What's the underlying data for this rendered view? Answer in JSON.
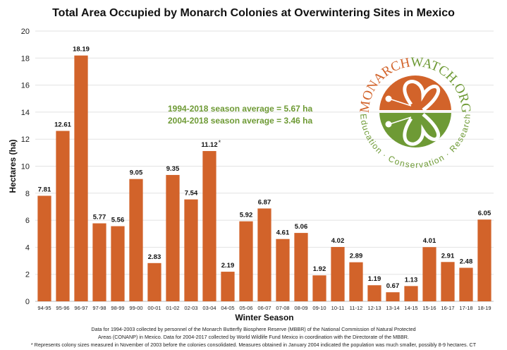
{
  "chart_data": {
    "type": "bar",
    "title": "Total Area Occupied by Monarch Colonies at Overwintering Sites in Mexico",
    "xlabel": "Winter Season",
    "ylabel": "Hectares (ha)",
    "ylim": [
      0,
      20
    ],
    "yticks": [
      0,
      2,
      4,
      6,
      8,
      10,
      12,
      14,
      16,
      18,
      20
    ],
    "grid": true,
    "bar_color": "#d2632a",
    "categories": [
      "94-95",
      "95-96",
      "96-97",
      "97-98",
      "98-99",
      "99-00",
      "00-01",
      "01-02",
      "02-03",
      "03-04",
      "04-05",
      "05-06",
      "06-07",
      "07-08",
      "08-09",
      "09-10",
      "10-11",
      "11-12",
      "12-13",
      "13-14",
      "14-15",
      "15-16",
      "16-17",
      "17-18",
      "18-19"
    ],
    "values": [
      7.81,
      12.61,
      18.19,
      5.77,
      5.56,
      9.05,
      2.83,
      9.35,
      7.54,
      11.12,
      2.19,
      5.92,
      6.87,
      4.61,
      5.06,
      1.92,
      4.02,
      2.89,
      1.19,
      0.67,
      1.13,
      4.01,
      2.91,
      2.48,
      6.05
    ],
    "data_labels": [
      "7.81",
      "12.61",
      "18.19",
      "5.77",
      "5.56",
      "9.05",
      "2.83",
      "9.35",
      "7.54",
      "11.12*",
      "2.19",
      "5.92",
      "6.87",
      "4.61",
      "5.06",
      "1.92",
      "4.02",
      "2.89",
      "1.19",
      "0.67",
      "1.13",
      "4.01",
      "2.91",
      "2.48",
      "6.05"
    ],
    "annotations": [
      "1994-2018 season average = 5.67 ha",
      "2004-2018 season average = 3.46 ha"
    ],
    "annotation_color": "#6e9a35"
  },
  "logo": {
    "top_text_1": "MONARCH",
    "top_text_2": "WATCH.ORG",
    "bottom_text": "Education · Conservation · Research",
    "orange": "#d2632a",
    "green": "#6e9a35"
  },
  "notes": [
    "Data for 1994-2003 collected by personnel of the Monarch Butterfly Biosphere Reserve (MBBR) of the National Commission of Natural Protected",
    "Areas (CONANP) in Mexico. Data for 2004-2017 collected by World Wildlife Fund Mexico in coordination with the Directorate of the MBBR.",
    "* Represents colony sizes measured in November of 2003 before the colonies consolidated. Measures obtained in January 2004 indicated the population was much smaller, possibly 8-9 hectares. CT"
  ]
}
